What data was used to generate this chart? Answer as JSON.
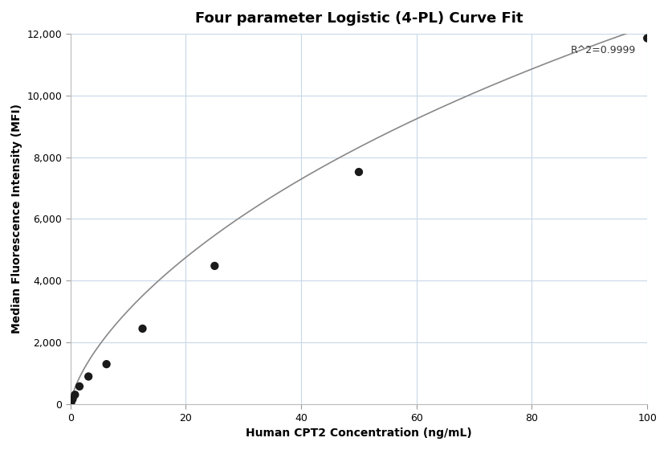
{
  "title": "Four parameter Logistic (4-PL) Curve Fit",
  "xlabel": "Human CPT2 Concentration (ng/mL)",
  "ylabel": "Median Fluorescence Intensity (MFI)",
  "annotation": "R^2=0.9999",
  "scatter_x": [
    0.098,
    0.195,
    0.39,
    0.781,
    1.563,
    3.125,
    6.25,
    12.5,
    25,
    50,
    100
  ],
  "scatter_y": [
    55,
    110,
    175,
    310,
    580,
    900,
    1300,
    2450,
    4480,
    7520,
    11850
  ],
  "xlim": [
    0,
    100
  ],
  "ylim": [
    0,
    12000
  ],
  "xticks": [
    0,
    20,
    40,
    60,
    80,
    100
  ],
  "yticks": [
    0,
    2000,
    4000,
    6000,
    8000,
    10000,
    12000
  ],
  "ytick_labels": [
    "0",
    "2,000",
    "4,000",
    "6,000",
    "8,000",
    "10,000",
    "12,000"
  ],
  "dot_color": "#1a1a1a",
  "dot_size": 55,
  "line_color": "#888888",
  "line_width": 1.2,
  "grid_color": "#c8d8e8",
  "background_color": "#ffffff",
  "title_fontsize": 13,
  "label_fontsize": 10,
  "tick_fontsize": 9,
  "annotation_fontsize": 9
}
